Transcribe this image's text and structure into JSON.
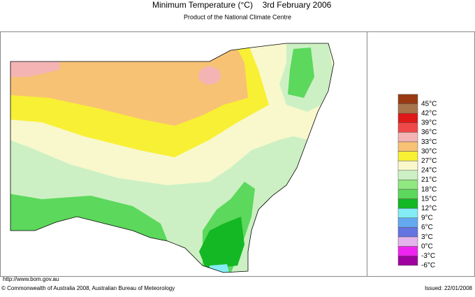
{
  "header": {
    "title": "Minimum Temperature (°C)",
    "date": "3rd February 2006",
    "subtitle": "Product of the National Climate Centre"
  },
  "legend": [
    {
      "label": "45°C",
      "color": "#9a3a12"
    },
    {
      "label": "42°C",
      "color": "#a8744c"
    },
    {
      "label": "39°C",
      "color": "#e01818"
    },
    {
      "label": "36°C",
      "color": "#f04848"
    },
    {
      "label": "33°C",
      "color": "#f4b4b4"
    },
    {
      "label": "30°C",
      "color": "#f8c274"
    },
    {
      "label": "27°C",
      "color": "#f8f034"
    },
    {
      "label": "24°C",
      "color": "#f8f8cc"
    },
    {
      "label": "21°C",
      "color": "#ccf0c4"
    },
    {
      "label": "18°C",
      "color": "#90e880"
    },
    {
      "label": "15°C",
      "color": "#5cd85c"
    },
    {
      "label": "12°C",
      "color": "#14b824"
    },
    {
      "label": "9°C",
      "color": "#84ecf4"
    },
    {
      "label": "6°C",
      "color": "#64a8f0"
    },
    {
      "label": "3°C",
      "color": "#6474e0"
    },
    {
      "label": "0°C",
      "color": "#e4b4ec"
    },
    {
      "label": "-3°C",
      "color": "#f024f0"
    },
    {
      "label": "-6°C",
      "color": "#a000a0"
    }
  ],
  "footer": {
    "url": "http://www.bom.gov.au",
    "copyright": "© Commonwealth of Australia 2008, Australian Bureau of Meteorology",
    "issued": "Issued: 22/01/2008"
  }
}
